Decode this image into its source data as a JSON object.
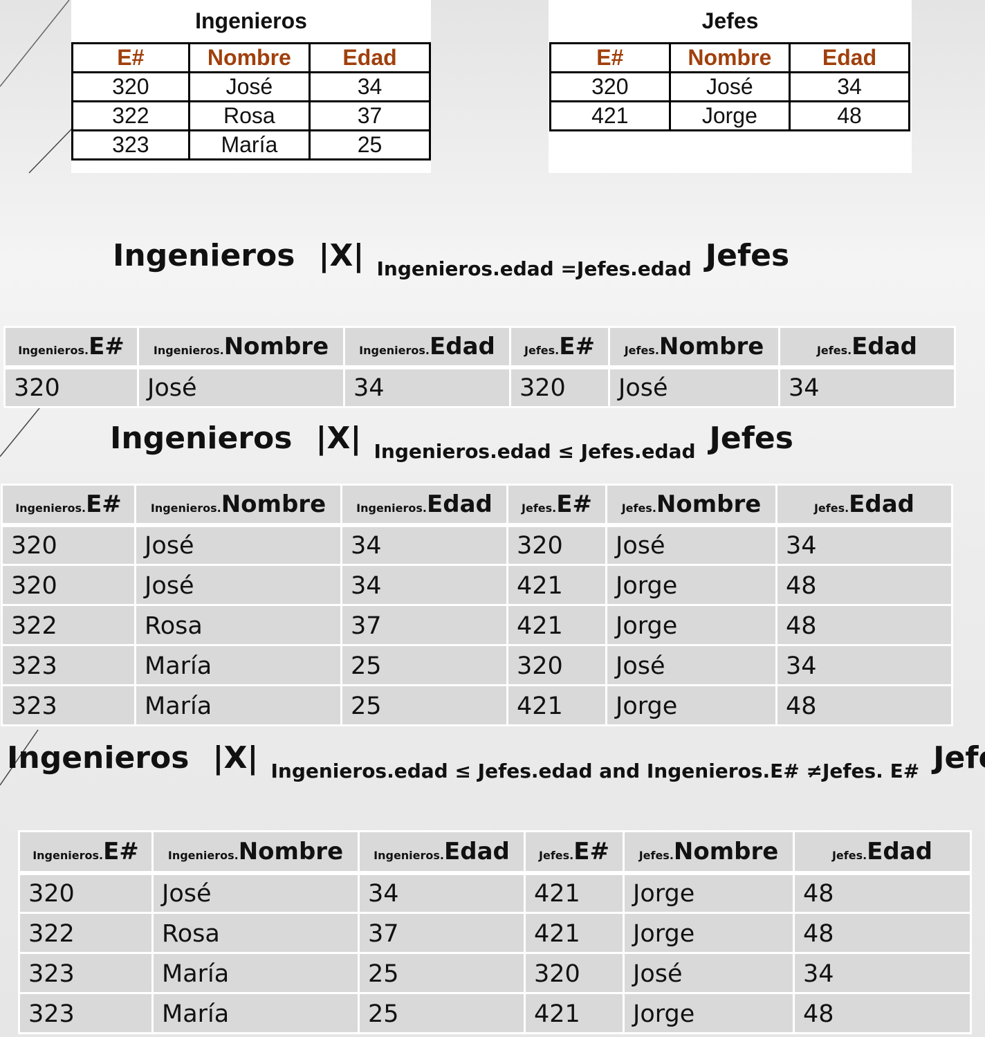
{
  "ingenieros": {
    "title": "Ingenieros",
    "headers": [
      "E#",
      "Nombre",
      "Edad"
    ],
    "rows": [
      [
        "320",
        "José",
        "34"
      ],
      [
        "322",
        "Rosa",
        "37"
      ],
      [
        "323",
        "María",
        "25"
      ]
    ]
  },
  "jefes": {
    "title": "Jefes",
    "headers": [
      "E#",
      "Nombre",
      "Edad"
    ],
    "rows": [
      [
        "320",
        "José",
        "34"
      ],
      [
        "421",
        "Jorge",
        "48"
      ]
    ]
  },
  "result_headers": [
    {
      "prefix": "Ingenieros.",
      "field": "E#"
    },
    {
      "prefix": "Ingenieros.",
      "field": "Nombre"
    },
    {
      "prefix": "Ingenieros.",
      "field": "Edad"
    },
    {
      "prefix": "Jefes.",
      "field": "E#"
    },
    {
      "prefix": "Jefes.",
      "field": "Nombre"
    },
    {
      "prefix": "Jefes.",
      "field": "Edad"
    }
  ],
  "joins": [
    {
      "left": "Ingenieros",
      "operator": "|X|",
      "condition": "Ingenieros.edad =Jefes.edad",
      "right": "Jefes",
      "rows": [
        [
          "320",
          "José",
          "34",
          "320",
          "José",
          "34"
        ]
      ]
    },
    {
      "left": "Ingenieros",
      "operator": "|X|",
      "condition": "Ingenieros.edad ≤ Jefes.edad",
      "right": "Jefes",
      "rows": [
        [
          "320",
          "José",
          "34",
          "320",
          "José",
          "34"
        ],
        [
          "320",
          "José",
          "34",
          "421",
          "Jorge",
          "48"
        ],
        [
          "322",
          "Rosa",
          "37",
          "421",
          "Jorge",
          "48"
        ],
        [
          "323",
          "María",
          "25",
          "320",
          "José",
          "34"
        ],
        [
          "323",
          "María",
          "25",
          "421",
          "Jorge",
          "48"
        ]
      ]
    },
    {
      "left": "Ingenieros",
      "operator": "|X|",
      "condition": "Ingenieros.edad ≤ Jefes.edad and Ingenieros.E# ≠Jefes. E#",
      "right": "Jefes",
      "rows": [
        [
          "320",
          "José",
          "34",
          "421",
          "Jorge",
          "48"
        ],
        [
          "322",
          "Rosa",
          "37",
          "421",
          "Jorge",
          "48"
        ],
        [
          "323",
          "María",
          "25",
          "320",
          "José",
          "34"
        ],
        [
          "323",
          "María",
          "25",
          "421",
          "Jorge",
          "48"
        ]
      ]
    }
  ]
}
